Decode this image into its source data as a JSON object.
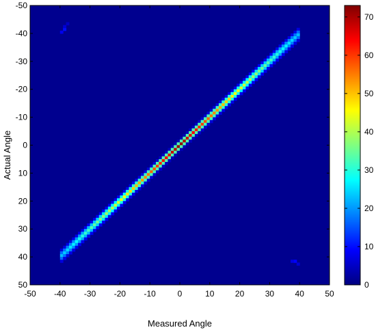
{
  "chart_data": {
    "type": "heatmap",
    "title": "",
    "xlabel": "Measured Angle",
    "ylabel": "Actual Angle",
    "xlim": [
      -50,
      50
    ],
    "ylim": [
      -50,
      50
    ],
    "y_reversed": true,
    "x_ticks": [
      -50,
      -40,
      -30,
      -20,
      -10,
      0,
      10,
      20,
      30,
      40,
      50
    ],
    "y_ticks": [
      -50,
      -40,
      -30,
      -20,
      -10,
      0,
      10,
      20,
      30,
      40,
      50
    ],
    "colormap": "jet",
    "background_color": "#00008f",
    "colorbar": {
      "min": 0,
      "max": 73,
      "ticks": [
        0,
        10,
        20,
        30,
        40,
        50,
        60,
        70
      ]
    },
    "bin_width": 1,
    "diagonal_band": {
      "x_from": -40,
      "x_to": 40,
      "relation": "actual = -measured",
      "width_spread": 0.8,
      "peak_count_center": 73,
      "count_near_ends": 22
    },
    "grid": false
  }
}
